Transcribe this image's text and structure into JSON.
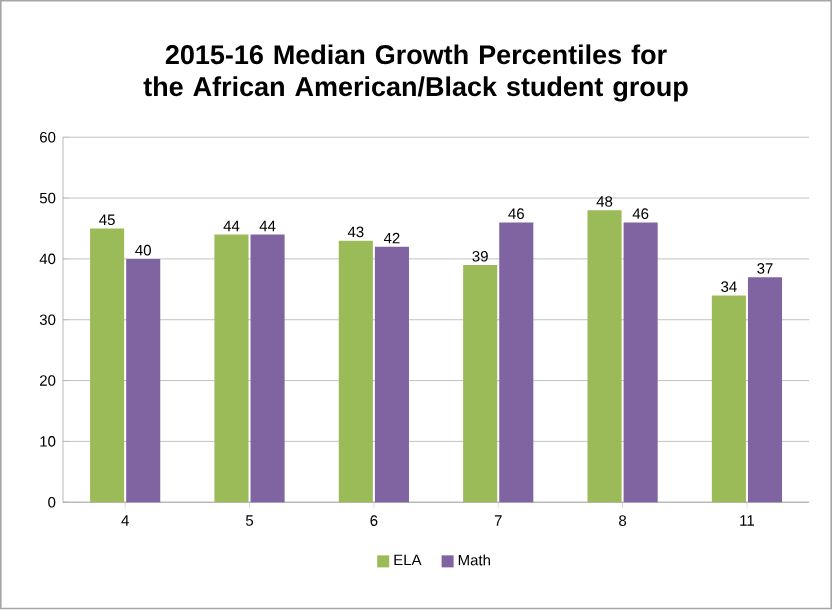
{
  "chart_data": {
    "type": "bar",
    "title": "2015-16 Median Growth Percentiles for the African American/Black student group",
    "categories": [
      "4",
      "5",
      "6",
      "7",
      "8",
      "11"
    ],
    "series": [
      {
        "name": "ELA",
        "color": "#9bbb59",
        "values": [
          45,
          44,
          43,
          39,
          48,
          34
        ]
      },
      {
        "name": "Math",
        "color": "#8064a2",
        "values": [
          40,
          44,
          42,
          46,
          46,
          37
        ]
      }
    ],
    "ylim": [
      0,
      60
    ],
    "yticks": [
      0,
      10,
      20,
      30,
      40,
      50,
      60
    ],
    "grid": "y",
    "legend": "bottom",
    "data_labels": true
  }
}
